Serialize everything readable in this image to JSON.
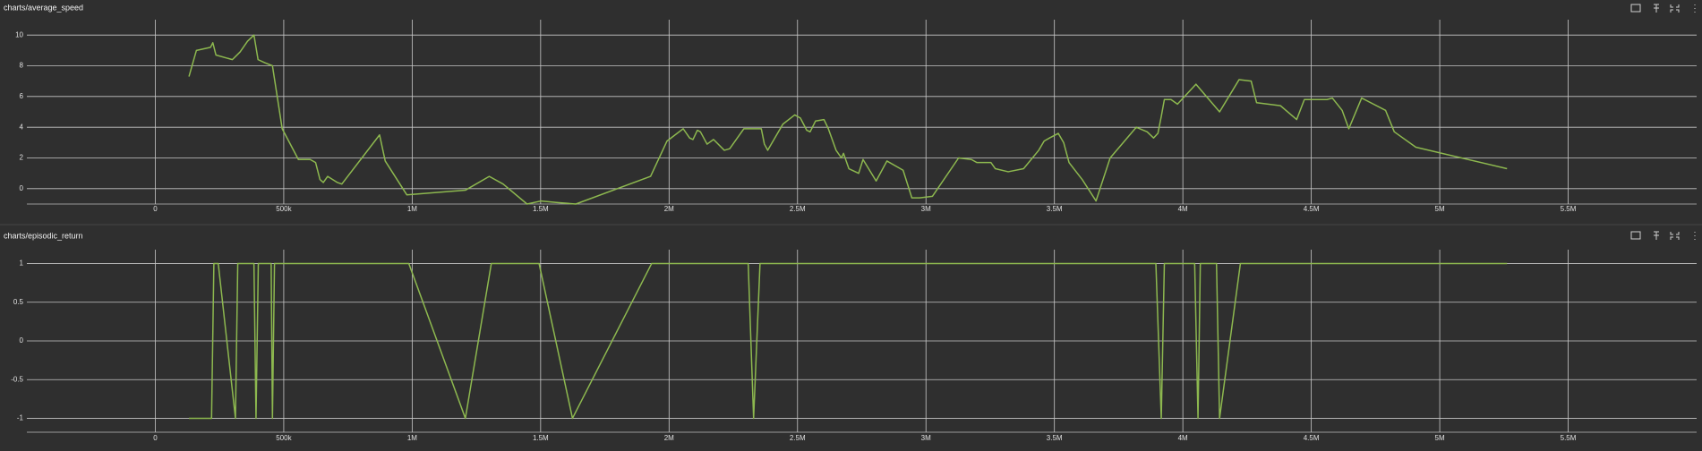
{
  "chart_data": [
    {
      "type": "line",
      "title": "charts/average_speed",
      "grid": true,
      "x": [
        131000,
        160000,
        215000,
        224000,
        236000,
        300000,
        312000,
        330000,
        359000,
        384000,
        400000,
        426000,
        456000,
        494000,
        557000,
        603000,
        624000,
        641000,
        654000,
        671000,
        709000,
        726000,
        873000,
        895000,
        979000,
        1207000,
        1300000,
        1354000,
        1447000,
        1502000,
        1561000,
        1637000,
        1928000,
        1992000,
        2055000,
        2080000,
        2093000,
        2110000,
        2122000,
        2148000,
        2173000,
        2215000,
        2236000,
        2291000,
        2342000,
        2359000,
        2371000,
        2384000,
        2443000,
        2489000,
        2511000,
        2536000,
        2549000,
        2570000,
        2603000,
        2620000,
        2650000,
        2671000,
        2679000,
        2700000,
        2738000,
        2755000,
        2806000,
        2848000,
        2911000,
        2945000,
        2975000,
        3025000,
        3127000,
        3177000,
        3198000,
        3253000,
        3270000,
        3320000,
        3380000,
        3439000,
        3460000,
        3481000,
        3515000,
        3536000,
        3557000,
        3608000,
        3662000,
        3717000,
        3819000,
        3861000,
        3886000,
        3903000,
        3916000,
        3928000,
        3954000,
        3979000,
        4051000,
        4143000,
        4219000,
        4266000,
        4287000,
        4380000,
        4443000,
        4473000,
        4561000,
        4582000,
        4620000,
        4646000,
        4696000,
        4789000,
        4823000,
        4907000,
        5262000
      ],
      "series": [
        {
          "color": "#8db84f",
          "values": [
            7.3,
            9.0,
            9.2,
            9.5,
            8.7,
            8.4,
            8.6,
            8.9,
            9.6,
            10,
            8.4,
            8.2,
            8.0,
            3.9,
            1.9,
            1.9,
            1.7,
            0.6,
            0.4,
            0.8,
            0.4,
            0.3,
            3.5,
            1.8,
            -0.4,
            -0.1,
            0.8,
            0.3,
            -1.0,
            -0.8,
            -0.9,
            -1.0,
            0.8,
            3.1,
            3.9,
            3.3,
            3.2,
            3.8,
            3.7,
            2.9,
            3.2,
            2.5,
            2.6,
            3.9,
            3.9,
            3.9,
            2.9,
            2.5,
            4.2,
            4.8,
            4.6,
            3.8,
            3.7,
            4.4,
            4.5,
            3.9,
            2.5,
            2.0,
            2.3,
            1.3,
            1.0,
            1.9,
            0.5,
            1.8,
            1.2,
            -0.6,
            -0.6,
            -0.5,
            2.0,
            1.9,
            1.7,
            1.7,
            1.3,
            1.1,
            1.3,
            2.5,
            3.1,
            3.3,
            3.6,
            3.0,
            1.7,
            0.6,
            -0.8,
            2.0,
            4.0,
            3.7,
            3.3,
            3.6,
            4.7,
            5.8,
            5.8,
            5.5,
            6.8,
            5.0,
            7.1,
            7.0,
            5.6,
            5.4,
            4.5,
            5.8,
            5.8,
            5.9,
            5.1,
            3.9,
            5.9,
            5.1,
            3.7,
            2.7,
            1.3
          ]
        }
      ],
      "xlim": [
        -500000,
        6000000
      ],
      "xticks": [
        0,
        {
          "value": 500000,
          "label": "500k"
        },
        {
          "value": 1000000,
          "label": "1M"
        },
        {
          "value": 1500000,
          "label": "1.5M"
        },
        {
          "value": 2000000,
          "label": "2M"
        },
        {
          "value": 2500000,
          "label": "2.5M"
        },
        {
          "value": 3000000,
          "label": "3M"
        },
        {
          "value": 3500000,
          "label": "3.5M"
        },
        {
          "value": 4000000,
          "label": "4M"
        },
        {
          "value": 4500000,
          "label": "4.5M"
        },
        {
          "value": 5000000,
          "label": "5M"
        },
        {
          "value": 5500000,
          "label": "5.5M"
        }
      ],
      "ylim": [
        -1,
        11
      ],
      "yticks": [
        0,
        2,
        4,
        6,
        8,
        10
      ]
    },
    {
      "type": "line",
      "title": "charts/episodic_return",
      "grid": true,
      "x": [
        131000,
        219000,
        228000,
        245000,
        312000,
        321000,
        384000,
        392000,
        401000,
        451000,
        456000,
        464000,
        987000,
        1207000,
        1308000,
        1494000,
        1624000,
        1932000,
        2308000,
        2329000,
        2354000,
        3895000,
        3916000,
        3928000,
        4046000,
        4059000,
        4068000,
        4131000,
        4143000,
        4224000,
        5262000
      ],
      "series": [
        {
          "color": "#8db84f",
          "values": [
            -1,
            -1,
            1,
            1,
            -1,
            1,
            1,
            -1,
            1,
            1,
            -1,
            1,
            1,
            -1,
            1,
            1,
            -1,
            1,
            1,
            -1,
            1,
            1,
            -1,
            1,
            1,
            -1,
            1,
            1,
            -1,
            1,
            1
          ]
        }
      ],
      "xlim": [
        -500000,
        6000000
      ],
      "xticks": [
        0,
        {
          "value": 500000,
          "label": "500k"
        },
        {
          "value": 1000000,
          "label": "1M"
        },
        {
          "value": 1500000,
          "label": "1.5M"
        },
        {
          "value": 2000000,
          "label": "2M"
        },
        {
          "value": 2500000,
          "label": "2.5M"
        },
        {
          "value": 3000000,
          "label": "3M"
        },
        {
          "value": 3500000,
          "label": "3.5M"
        },
        {
          "value": 4000000,
          "label": "4M"
        },
        {
          "value": 4500000,
          "label": "4.5M"
        },
        {
          "value": 5000000,
          "label": "5M"
        },
        {
          "value": 5500000,
          "label": "5.5M"
        }
      ],
      "ylim": [
        -1.18,
        1.18
      ],
      "yticks": [
        -1,
        -0.5,
        0,
        0.5,
        1
      ]
    }
  ]
}
